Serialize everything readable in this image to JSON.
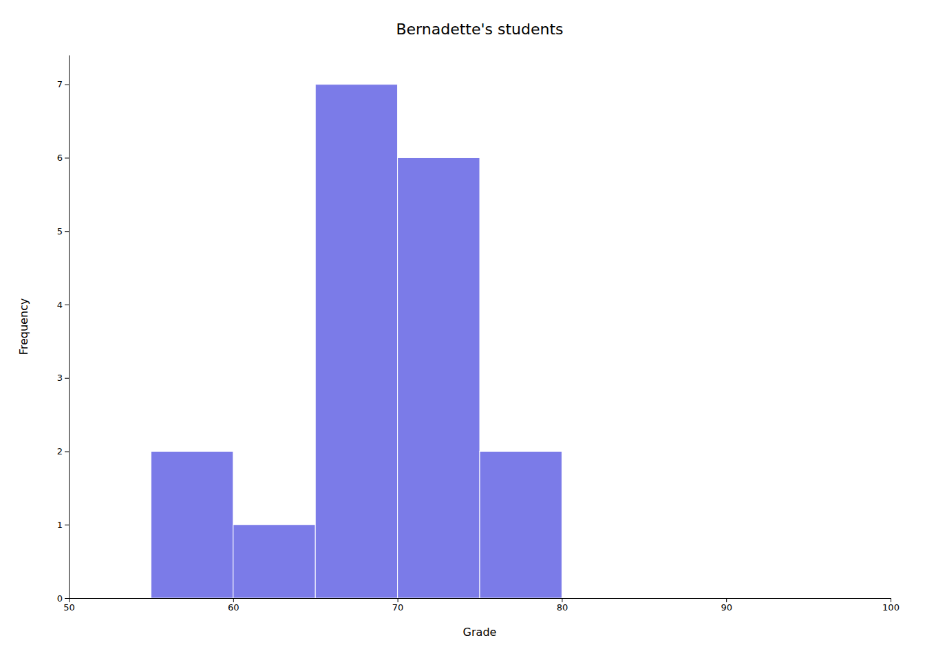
{
  "chart_data": {
    "type": "histogram",
    "title": "Bernadette's students",
    "xlabel": "Grade",
    "ylabel": "Frequency",
    "bins": [
      55,
      60,
      65,
      70,
      75,
      80
    ],
    "values": [
      2,
      1,
      7,
      6,
      2
    ],
    "color": "#7b7be8",
    "xlim": [
      50,
      100
    ],
    "ylim": [
      0,
      7.4
    ],
    "xticks": [
      50,
      60,
      70,
      80,
      90,
      100
    ],
    "yticks": [
      0,
      1,
      2,
      3,
      4,
      5,
      6,
      7
    ],
    "grid": false
  }
}
